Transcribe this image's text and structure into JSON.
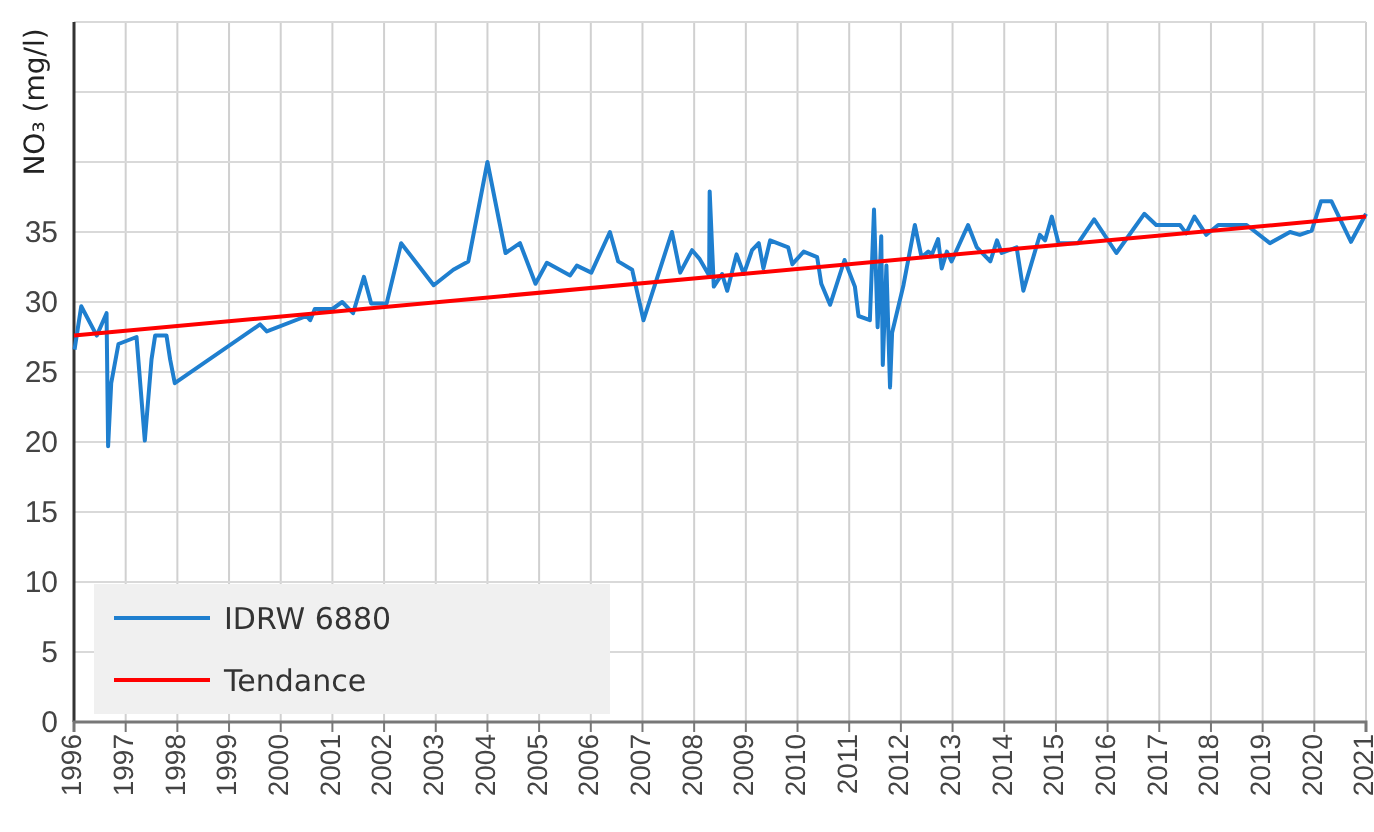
{
  "chart_data": {
    "type": "line",
    "ylabel": "NO₃  (mg/l)",
    "series": [
      {
        "name": "IDRW  6880",
        "color": "#1f7fcf",
        "x": [
          1996.01,
          1996.14,
          1996.44,
          1996.63,
          1996.66,
          1996.72,
          1996.86,
          1997.21,
          1997.37,
          1997.5,
          1997.57,
          1997.79,
          1997.86,
          1997.95,
          1999.6,
          1999.73,
          2000.5,
          2000.57,
          2000.66,
          2001.0,
          2001.19,
          2001.4,
          2001.61,
          2001.75,
          2002.05,
          2002.33,
          2002.96,
          2003.34,
          2003.63,
          2004.0,
          2004.35,
          2004.63,
          2004.93,
          2005.15,
          2005.6,
          2005.73,
          2006.01,
          2006.37,
          2006.53,
          2006.8,
          2007.02,
          2007.57,
          2007.73,
          2007.96,
          2008.1,
          2008.29,
          2008.3,
          2008.38,
          2008.54,
          2008.64,
          2008.82,
          2008.96,
          2009.12,
          2009.25,
          2009.34,
          2009.47,
          2009.82,
          2009.9,
          2010.12,
          2010.38,
          2010.46,
          2010.63,
          2010.91,
          2011.11,
          2011.18,
          2011.4,
          2011.48,
          2011.55,
          2011.62,
          2011.65,
          2011.72,
          2011.79,
          2011.83,
          2012.05,
          2012.27,
          2012.4,
          2012.53,
          2012.6,
          2012.72,
          2012.79,
          2012.89,
          2012.98,
          2013.08,
          2013.3,
          2013.47,
          2013.73,
          2013.86,
          2013.95,
          2014.24,
          2014.37,
          2014.69,
          2014.79,
          2014.92,
          2015.05,
          2015.43,
          2015.74,
          2016.17,
          2016.71,
          2016.94,
          2017.4,
          2017.52,
          2017.68,
          2017.91,
          2018.14,
          2018.69,
          2019.14,
          2019.53,
          2019.72,
          2019.95,
          2020.13,
          2020.33,
          2020.71,
          2021.0
        ],
        "values": [
          26.6,
          29.7,
          27.6,
          29.2,
          19.7,
          24.2,
          27.0,
          27.5,
          20.1,
          25.9,
          27.6,
          27.6,
          25.9,
          24.2,
          28.4,
          27.9,
          29.0,
          28.7,
          29.5,
          29.5,
          30.0,
          29.2,
          31.8,
          29.9,
          29.9,
          34.2,
          31.2,
          32.3,
          32.9,
          40.0,
          33.5,
          34.2,
          31.3,
          32.8,
          31.9,
          32.6,
          32.1,
          35.0,
          32.9,
          32.3,
          28.7,
          35.0,
          32.1,
          33.7,
          33.1,
          31.9,
          37.9,
          31.1,
          32.0,
          30.8,
          33.4,
          32.0,
          33.7,
          34.2,
          32.4,
          34.4,
          33.9,
          32.7,
          33.6,
          33.2,
          31.3,
          29.8,
          33.0,
          31.1,
          29.0,
          28.7,
          36.6,
          28.2,
          34.7,
          25.5,
          32.6,
          23.9,
          27.8,
          31.2,
          35.5,
          33.2,
          33.6,
          33.4,
          34.5,
          32.4,
          33.6,
          32.9,
          33.7,
          35.5,
          33.9,
          32.9,
          34.4,
          33.5,
          33.9,
          30.8,
          34.8,
          34.4,
          36.1,
          34.2,
          34.2,
          35.9,
          33.5,
          36.3,
          35.5,
          35.5,
          34.9,
          36.1,
          34.8,
          35.5,
          35.5,
          34.2,
          35.0,
          34.8,
          35.1,
          37.2,
          37.2,
          34.3,
          36.3
        ]
      },
      {
        "name": "Tendance",
        "color": "#ff0000",
        "x": [
          1996,
          2021
        ],
        "values": [
          27.6,
          36.1
        ]
      }
    ],
    "xlim": [
      1996,
      2021
    ],
    "xticks": [
      1996,
      1997,
      1998,
      1999,
      2000,
      2001,
      2002,
      2003,
      2004,
      2005,
      2006,
      2007,
      2008,
      2009,
      2010,
      2011,
      2012,
      2013,
      2014,
      2015,
      2016,
      2017,
      2018,
      2019,
      2020,
      2021
    ],
    "ylim": [
      0,
      50
    ],
    "yticks": [
      0,
      5,
      10,
      15,
      20,
      25,
      30,
      35,
      {
        "value": 40,
        "label": null
      },
      {
        "value": 45,
        "label": null
      },
      {
        "value": 50,
        "label": null
      }
    ],
    "grid": true,
    "legend": "bottom left",
    "line_style": "solid",
    "marker": "none"
  }
}
